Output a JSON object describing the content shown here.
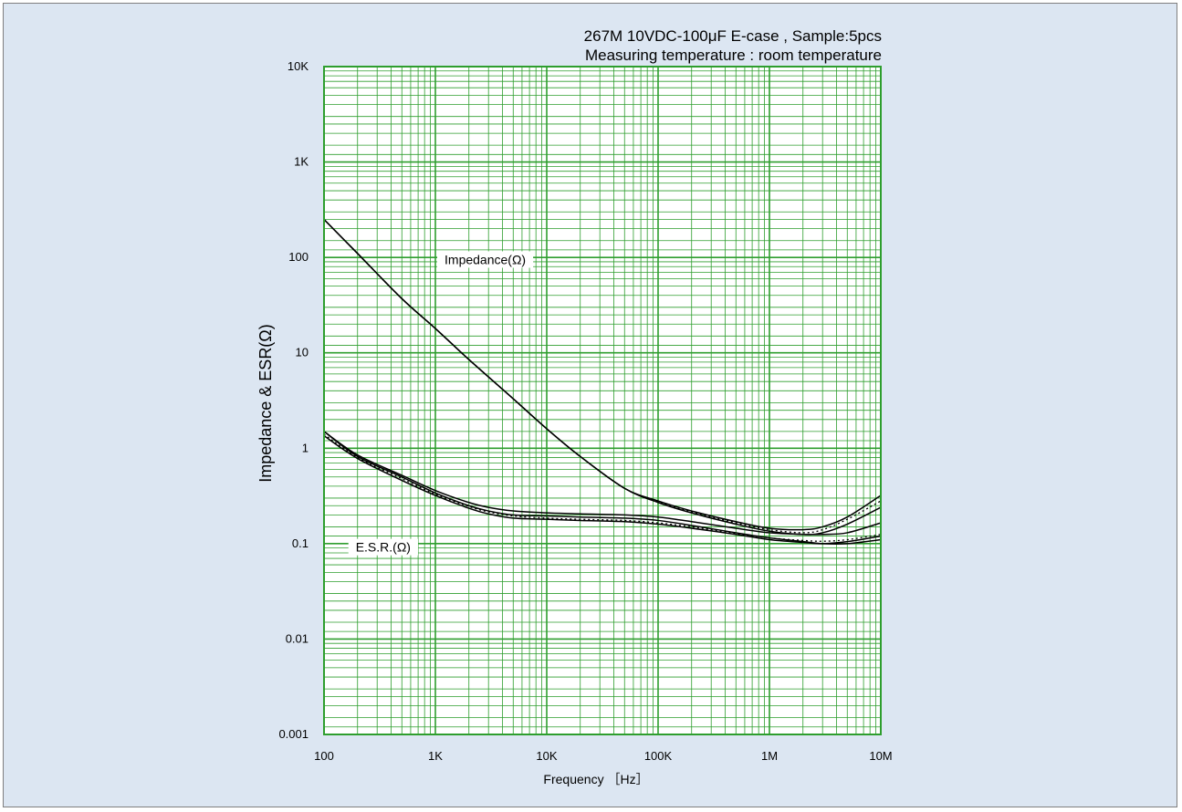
{
  "chart_data": {
    "type": "line",
    "title_lines": [
      "267M 10VDC-100μF E-case , Sample:5pcs",
      "Measuring temperature : room temperature"
    ],
    "xlabel": "Frequency ［Hz］",
    "ylabel": "Impedance  &  ESR(Ω)",
    "x_scale": "log",
    "y_scale": "log",
    "xlim": [
      100,
      10000000
    ],
    "ylim": [
      0.001,
      10000
    ],
    "x_ticks": [
      {
        "value": 100,
        "label": "100"
      },
      {
        "value": 1000,
        "label": "1K"
      },
      {
        "value": 10000,
        "label": "10K"
      },
      {
        "value": 100000,
        "label": "100K"
      },
      {
        "value": 1000000,
        "label": "1M"
      },
      {
        "value": 10000000,
        "label": "10M"
      }
    ],
    "y_ticks": [
      {
        "value": 10000,
        "label": "10K"
      },
      {
        "value": 1000,
        "label": "1K"
      },
      {
        "value": 100,
        "label": "100"
      },
      {
        "value": 10,
        "label": "10"
      },
      {
        "value": 1,
        "label": "1"
      },
      {
        "value": 0.1,
        "label": "0.1"
      },
      {
        "value": 0.01,
        "label": "0.01"
      },
      {
        "value": 0.001,
        "label": "0.001"
      }
    ],
    "grid": true,
    "grid_color": "#2e9e2e",
    "background_color": "#dce6f2",
    "plot_background": "#ffffff",
    "annotations": [
      {
        "text": "Impedance(Ω)",
        "x": 2800,
        "y": 95
      },
      {
        "text": "E.S.R.(Ω)",
        "x": 340,
        "y": 0.092
      }
    ],
    "series": [
      {
        "style": "solid",
        "group": "impedance",
        "x": [
          100,
          200,
          500,
          1000,
          2000,
          5000,
          10000,
          20000,
          50000,
          100000,
          200000,
          500000,
          1000000,
          2000000,
          3000000,
          5000000,
          10000000
        ],
        "y": [
          250,
          110,
          37,
          18,
          8.5,
          3.3,
          1.6,
          0.82,
          0.38,
          0.28,
          0.22,
          0.17,
          0.145,
          0.14,
          0.15,
          0.19,
          0.32
        ]
      },
      {
        "style": "solid",
        "group": "impedance",
        "x": [
          100,
          200,
          500,
          1000,
          2000,
          5000,
          10000,
          20000,
          50000,
          100000,
          200000,
          500000,
          1000000,
          2000000,
          3000000,
          5000000,
          10000000
        ],
        "y": [
          250,
          110,
          37,
          18,
          8.5,
          3.3,
          1.6,
          0.82,
          0.38,
          0.27,
          0.21,
          0.16,
          0.135,
          0.125,
          0.13,
          0.16,
          0.24
        ]
      },
      {
        "style": "dotted",
        "group": "impedance",
        "x": [
          100,
          200,
          500,
          1000,
          2000,
          5000,
          10000,
          20000,
          50000,
          100000,
          200000,
          500000,
          1000000,
          2000000,
          3000000,
          5000000,
          10000000
        ],
        "y": [
          250,
          110,
          37,
          18,
          8.5,
          3.3,
          1.6,
          0.82,
          0.38,
          0.275,
          0.215,
          0.165,
          0.14,
          0.13,
          0.14,
          0.18,
          0.28
        ]
      },
      {
        "style": "solid",
        "group": "esr",
        "x": [
          100,
          200,
          500,
          1000,
          2000,
          3000,
          5000,
          10000,
          20000,
          50000,
          100000,
          200000,
          500000,
          1000000,
          2000000,
          3000000,
          5000000,
          10000000
        ],
        "y": [
          1.5,
          0.85,
          0.52,
          0.36,
          0.27,
          0.24,
          0.22,
          0.21,
          0.205,
          0.2,
          0.19,
          0.17,
          0.145,
          0.13,
          0.125,
          0.125,
          0.13,
          0.165
        ]
      },
      {
        "style": "solid",
        "group": "esr",
        "x": [
          100,
          200,
          500,
          1000,
          2000,
          3000,
          5000,
          10000,
          20000,
          50000,
          100000,
          200000,
          500000,
          1000000,
          2000000,
          3000000,
          5000000,
          10000000
        ],
        "y": [
          1.5,
          0.82,
          0.5,
          0.34,
          0.25,
          0.22,
          0.2,
          0.195,
          0.19,
          0.185,
          0.175,
          0.155,
          0.13,
          0.115,
          0.105,
          0.1,
          0.1,
          0.11
        ]
      },
      {
        "style": "dotted",
        "group": "esr",
        "x": [
          100,
          200,
          500,
          1000,
          2000,
          3000,
          5000,
          10000,
          20000,
          50000,
          100000,
          200000,
          500000,
          1000000,
          2000000,
          3000000,
          5000000,
          10000000
        ],
        "y": [
          1.4,
          0.8,
          0.48,
          0.33,
          0.245,
          0.215,
          0.195,
          0.185,
          0.18,
          0.175,
          0.165,
          0.15,
          0.128,
          0.115,
          0.108,
          0.106,
          0.11,
          0.125
        ]
      },
      {
        "style": "solid",
        "group": "esr",
        "x": [
          100,
          200,
          500,
          1000,
          2000,
          3000,
          5000,
          10000,
          20000,
          50000,
          100000,
          200000,
          500000,
          1000000,
          2000000,
          3000000,
          5000000,
          10000000
        ],
        "y": [
          1.35,
          0.78,
          0.46,
          0.32,
          0.235,
          0.205,
          0.185,
          0.18,
          0.175,
          0.17,
          0.16,
          0.145,
          0.125,
          0.11,
          0.103,
          0.1,
          0.105,
          0.12
        ]
      }
    ]
  }
}
